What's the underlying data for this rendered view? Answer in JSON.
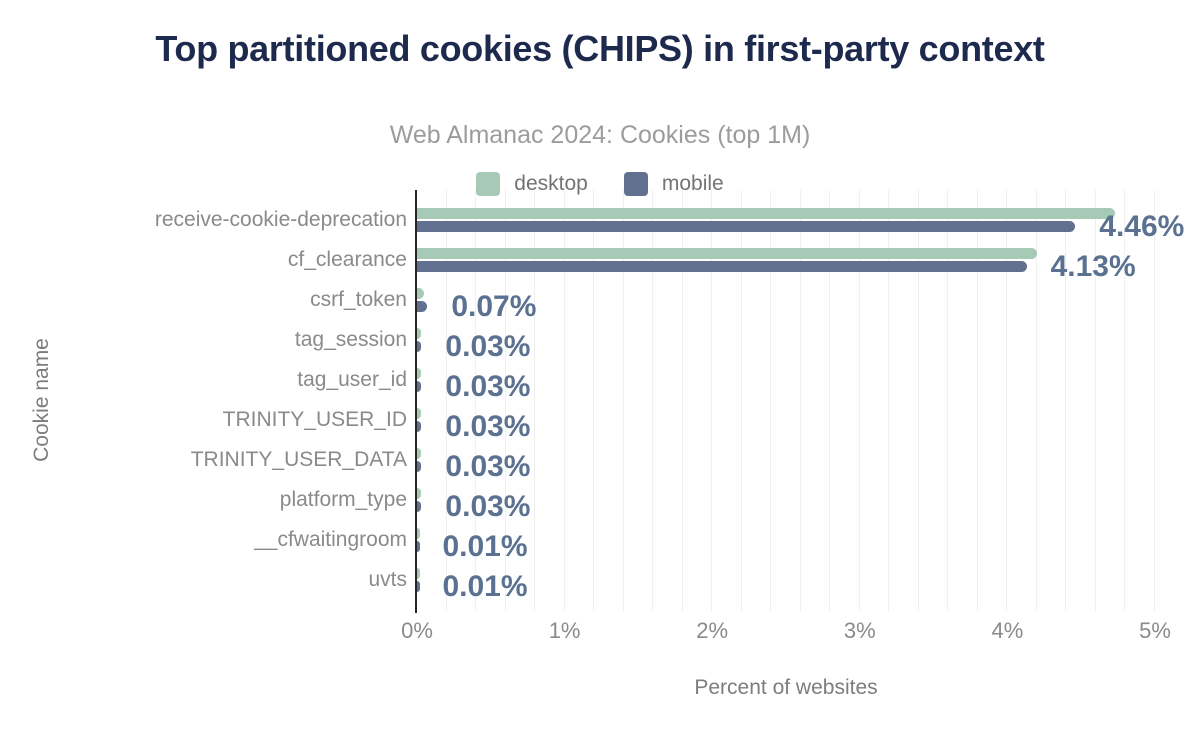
{
  "title": "Top partitioned cookies (CHIPS) in first-party context",
  "subtitle": "Web Almanac 2024: Cookies (top 1M)",
  "legend": [
    {
      "label": "desktop",
      "color": "#a7cab6"
    },
    {
      "label": "mobile",
      "color": "#61708f"
    }
  ],
  "colors": {
    "title": "#1e2a4d",
    "subtitle": "#9c9c9c",
    "desktop_bar": "#a7cab6",
    "mobile_bar": "#61708f",
    "value_label": "#5b7191",
    "axis_text": "#8a8a8a",
    "axis_title": "#7d7d7d",
    "gridline": "#f0f0f0",
    "axis_line": "#262626"
  },
  "chart_data": {
    "type": "bar",
    "orientation": "horizontal",
    "title": "Top partitioned cookies (CHIPS) in first-party context",
    "subtitle": "Web Almanac 2024: Cookies (top 1M)",
    "categories": [
      "receive-cookie-deprecation",
      "cf_clearance",
      "csrf_token",
      "tag_session",
      "tag_user_id",
      "TRINITY_USER_ID",
      "TRINITY_USER_DATA",
      "platform_type",
      "__cfwaitingroom",
      "uvts"
    ],
    "series": [
      {
        "name": "desktop",
        "values": [
          4.73,
          4.2,
          0.05,
          0.03,
          0.03,
          0.03,
          0.03,
          0.03,
          0.01,
          0.01
        ]
      },
      {
        "name": "mobile",
        "values": [
          4.46,
          4.13,
          0.07,
          0.03,
          0.03,
          0.03,
          0.03,
          0.03,
          0.01,
          0.01
        ]
      }
    ],
    "value_labels": [
      "4.46%",
      "4.13%",
      "0.07%",
      "0.03%",
      "0.03%",
      "0.03%",
      "0.03%",
      "0.03%",
      "0.01%",
      "0.01%"
    ],
    "xlabel": "Percent of websites",
    "ylabel": "Cookie name",
    "x_ticks": [
      "0%",
      "1%",
      "2%",
      "3%",
      "4%",
      "5%"
    ],
    "xlim": [
      0,
      5
    ],
    "grid_step_pct": 0.2,
    "grid": true,
    "legend_position": "top"
  }
}
